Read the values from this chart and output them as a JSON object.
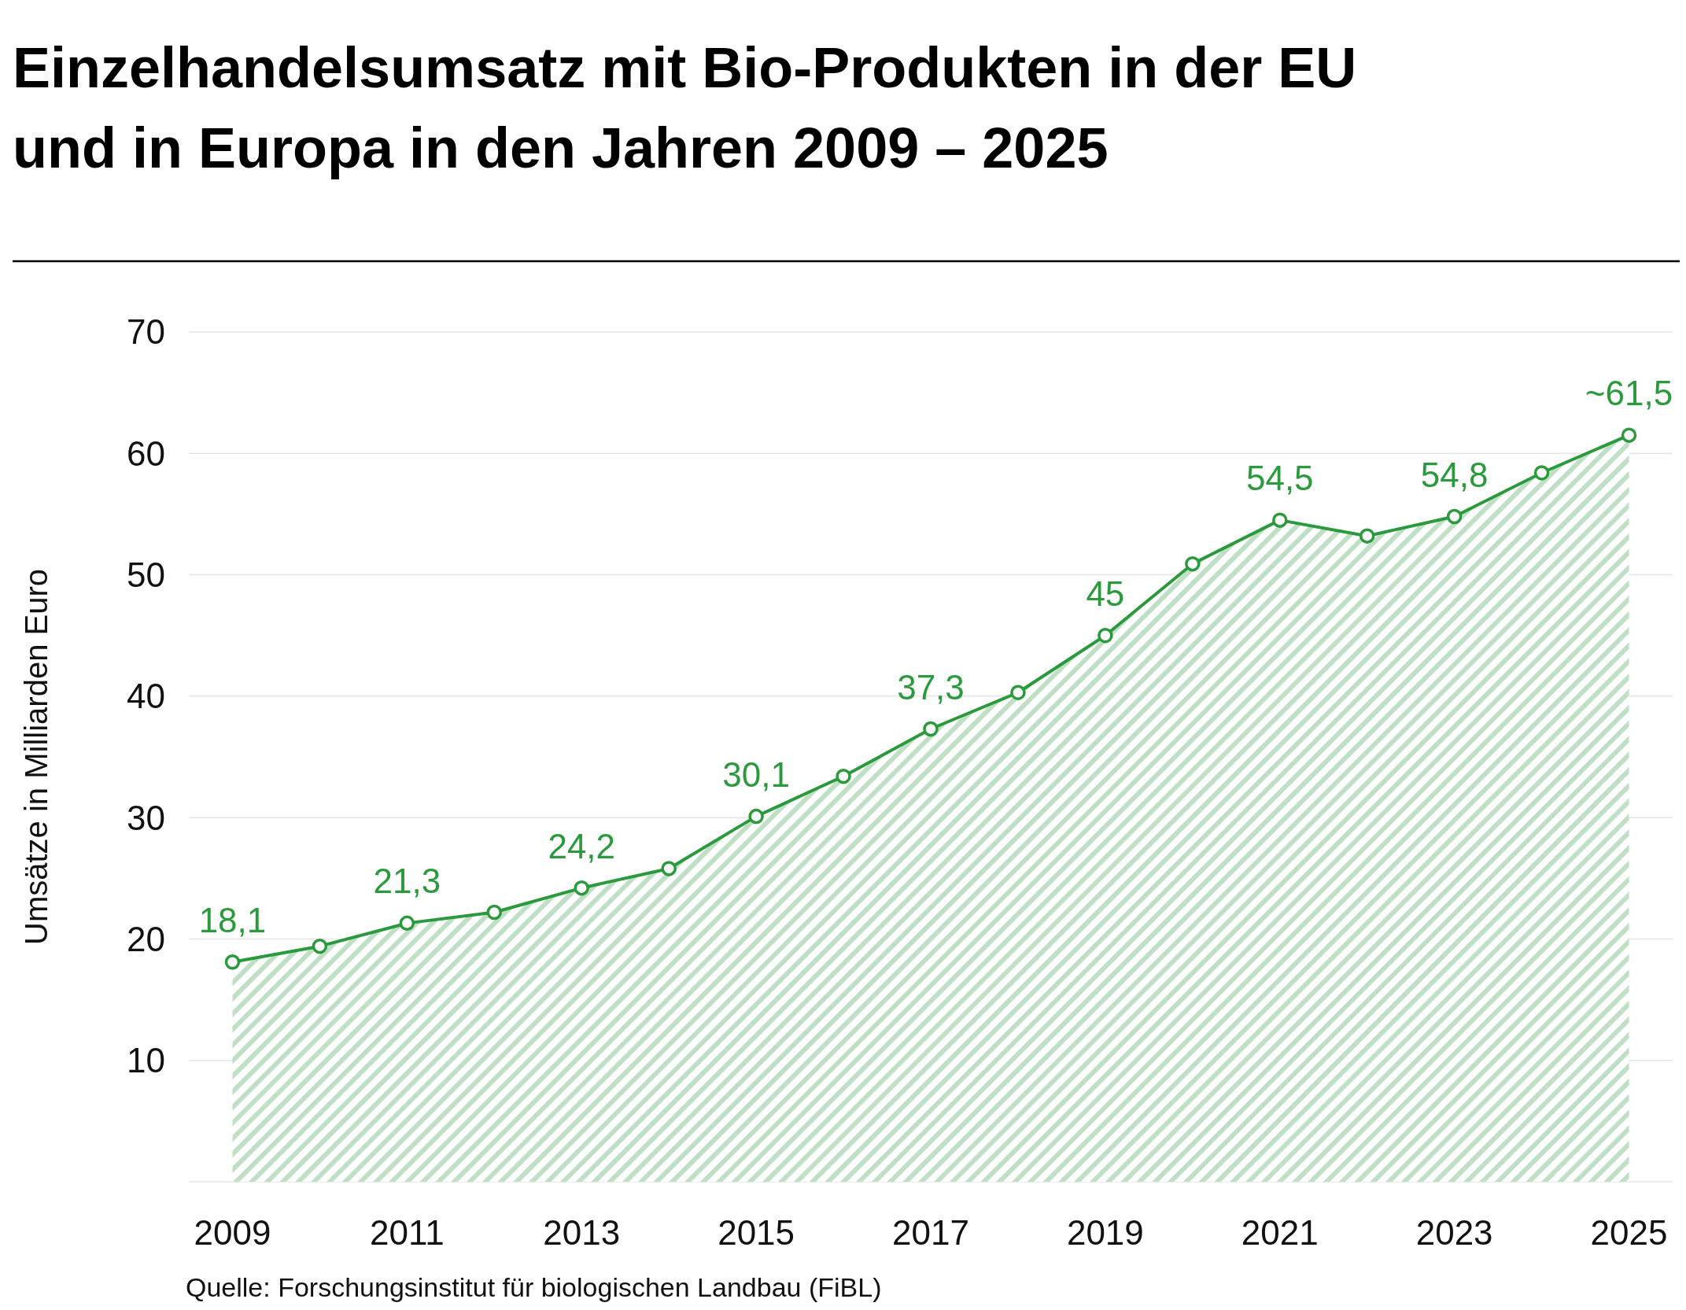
{
  "chart_data": {
    "type": "area",
    "title": "Einzelhandelsumsatz mit Bio-Produkten in der EU und in Europa in den Jahren 2009 – 2025",
    "ylabel": "Umsätze in Milliarden Euro",
    "x": [
      2009,
      2010,
      2011,
      2012,
      2013,
      2014,
      2015,
      2016,
      2017,
      2018,
      2019,
      2020,
      2021,
      2022,
      2023,
      2024,
      2025
    ],
    "series": [
      {
        "color": "#2a9a3c",
        "values": [
          18.1,
          19.4,
          21.3,
          22.2,
          24.2,
          25.8,
          30.1,
          33.4,
          37.3,
          40.3,
          45,
          50.9,
          54.5,
          53.2,
          54.8,
          58.4,
          61.5
        ],
        "value_labels": [
          "18,1",
          null,
          "21,3",
          null,
          "24,2",
          null,
          "30,1",
          null,
          "37,3",
          null,
          "45",
          null,
          "54,5",
          null,
          "54,8",
          null,
          "~61,5"
        ]
      }
    ],
    "xlim": [
      2008.5,
      2025.5
    ],
    "xticks": [
      2009,
      2011,
      2013,
      2015,
      2017,
      2019,
      2021,
      2023,
      2025
    ],
    "ylim": [
      0,
      70
    ],
    "yticks": [
      10,
      20,
      30,
      40,
      50,
      60,
      70
    ],
    "grid": "y",
    "marker": "circle",
    "annotations": [
      "Quelle: Forschungsinstitut für biologischen Landbau (FiBL)"
    ]
  }
}
